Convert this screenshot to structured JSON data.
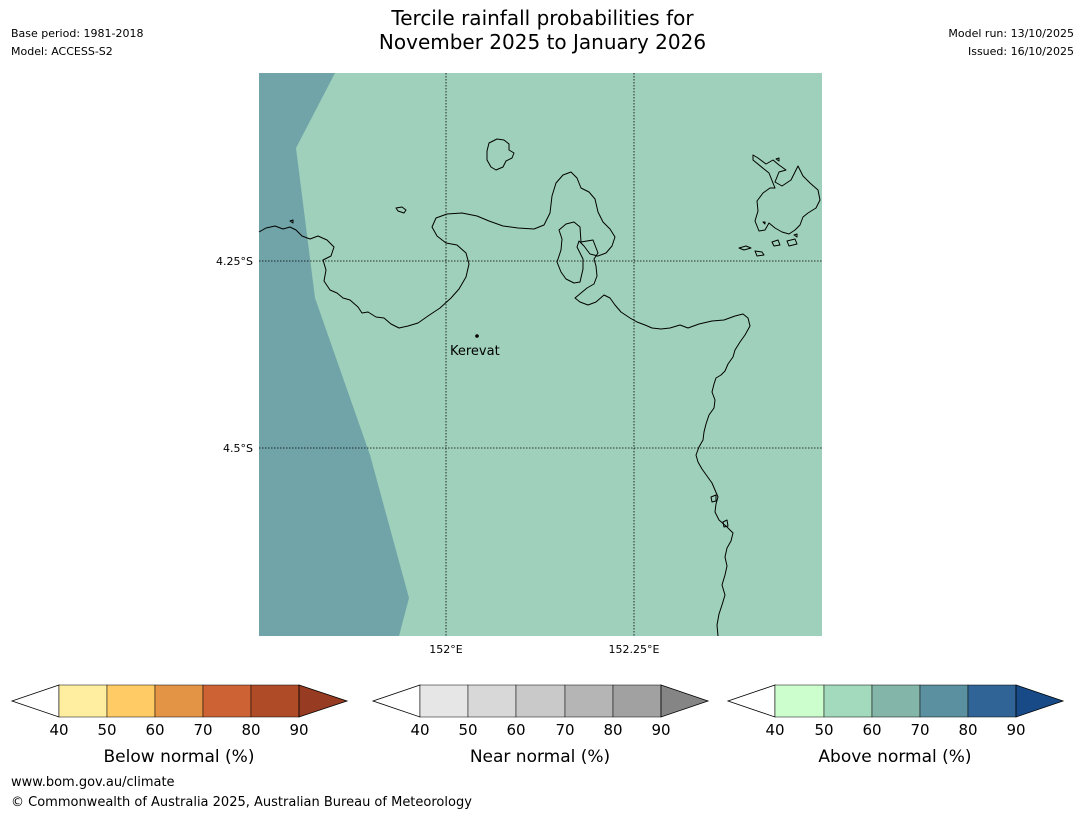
{
  "header": {
    "title_line1": "Tercile rainfall probabilities for",
    "title_line2": "November 2025 to January 2026",
    "base_period": "Base period: 1981-2018",
    "model": "Model: ACCESS-S2",
    "model_run": "Model run: 13/10/2025",
    "issued": "Issued: 16/10/2025"
  },
  "map": {
    "lat_labels": [
      "4.25°S",
      "4.5°S"
    ],
    "lon_labels": [
      "152°E",
      "152.25°E"
    ],
    "place_name": "Kerevat",
    "colors": {
      "above_50_60": "#9fd0bb",
      "above_60_70": "#70a4a8",
      "coastline": "#000000"
    }
  },
  "legends": [
    {
      "title": "Below normal (%)",
      "ticks": [
        "40",
        "50",
        "60",
        "70",
        "80",
        "90"
      ],
      "colors": [
        "#ffeda0",
        "#fecb64",
        "#e49445",
        "#cd6234",
        "#b04b28",
        "#973c22"
      ]
    },
    {
      "title": "Near normal (%)",
      "ticks": [
        "40",
        "50",
        "60",
        "70",
        "80",
        "90"
      ],
      "colors": [
        "#e6e6e6",
        "#d8d8d8",
        "#c9c9c9",
        "#b5b5b5",
        "#a1a1a1",
        "#858585"
      ]
    },
    {
      "title": "Above normal (%)",
      "ticks": [
        "40",
        "50",
        "60",
        "70",
        "80",
        "90"
      ],
      "colors": [
        "#ccfdcc",
        "#a3d9bc",
        "#84b5a9",
        "#5a909f",
        "#306496",
        "#174a86"
      ]
    }
  ],
  "footer": {
    "url": "www.bom.gov.au/climate",
    "copyright": "© Commonwealth of Australia 2025, Australian Bureau of Meteorology"
  }
}
